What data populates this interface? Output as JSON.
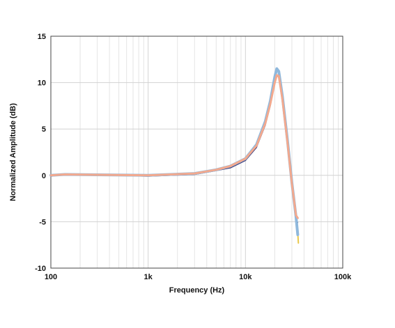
{
  "chart_data": {
    "type": "line",
    "title": "",
    "xlabel": "Frequency (Hz)",
    "ylabel": "Normalized Amplitude (dB)",
    "xscale": "log",
    "xlim": [
      100,
      100000
    ],
    "ylim": [
      -10,
      15
    ],
    "grid": true,
    "legend": "none",
    "x_ticks": [
      {
        "value": 100,
        "label": "100"
      },
      {
        "value": 1000,
        "label": "1k"
      },
      {
        "value": 10000,
        "label": "10k"
      },
      {
        "value": 100000,
        "label": "100k"
      }
    ],
    "y_ticks": [
      {
        "value": 15,
        "label": "15"
      },
      {
        "value": 10,
        "label": "10"
      },
      {
        "value": 5,
        "label": "5"
      },
      {
        "value": 0,
        "label": "0"
      },
      {
        "value": -5,
        "label": "-5"
      },
      {
        "value": -10,
        "label": "-10"
      }
    ],
    "series": [
      {
        "color": "#e9c84a",
        "x": [
          100,
          140,
          1000,
          3000,
          5000,
          7000,
          10000,
          13000,
          16000,
          18000,
          20000,
          21000,
          22000,
          24000,
          27000,
          30000,
          33000,
          34500,
          35000
        ],
        "y": [
          0,
          0.1,
          0,
          0.2,
          0.6,
          1.0,
          1.8,
          3.2,
          5.6,
          7.7,
          10.0,
          10.8,
          10.7,
          8.2,
          3.6,
          -0.9,
          -4.3,
          -6.2,
          -7.3
        ]
      },
      {
        "color": "#3a3a7a",
        "x": [
          100,
          140,
          1000,
          3000,
          5000,
          7000,
          10000,
          13000,
          16000,
          18000,
          20000,
          21000,
          22000,
          24000,
          27000,
          30000,
          33000,
          34500
        ],
        "y": [
          -0.1,
          0.1,
          -0.1,
          0.1,
          0.5,
          0.8,
          1.6,
          3.0,
          5.4,
          7.5,
          9.9,
          10.7,
          10.6,
          8.1,
          3.5,
          -1.0,
          -4.6,
          -5.1
        ]
      },
      {
        "color": "#8fb8dc",
        "x": [
          100,
          140,
          1000,
          3000,
          5000,
          7000,
          10000,
          13000,
          16000,
          18000,
          20000,
          21000,
          22000,
          24000,
          27000,
          30000,
          33000,
          34500
        ],
        "y": [
          0,
          0.1,
          0,
          0.2,
          0.6,
          1.0,
          1.8,
          3.3,
          5.8,
          8.0,
          10.6,
          11.5,
          11.2,
          8.5,
          3.8,
          -0.8,
          -4.4,
          -6.4
        ]
      },
      {
        "color": "#f3a98e",
        "x": [
          100,
          140,
          1000,
          3000,
          5000,
          7000,
          10000,
          13000,
          16000,
          18000,
          20000,
          21000,
          22000,
          24000,
          27000,
          30000,
          33000,
          34500
        ],
        "y": [
          0,
          0.1,
          0,
          0.2,
          0.6,
          1.0,
          1.8,
          3.2,
          5.6,
          7.7,
          10.0,
          10.8,
          10.7,
          8.2,
          3.6,
          -0.9,
          -4.3,
          -4.6
        ]
      }
    ]
  }
}
